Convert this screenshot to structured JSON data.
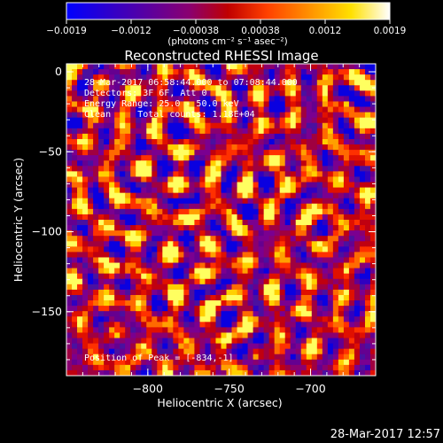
{
  "chart_data": {
    "type": "heatmap",
    "title": "Reconstructed RHESSI Image",
    "xlabel": "Heliocentric X (arcsec)",
    "ylabel": "Heliocentric Y (arcsec)",
    "xlim": [
      -850,
      -660
    ],
    "ylim": [
      -190,
      5
    ],
    "x_ticks": [
      -800,
      -750,
      -700
    ],
    "y_ticks": [
      0,
      -50,
      -100,
      -150
    ],
    "x_tick_labels": [
      "−800",
      "−750",
      "−700"
    ],
    "y_tick_labels": [
      "0",
      "−50",
      "−100",
      "−150"
    ],
    "colorbar": {
      "range": [
        -0.0019,
        0.0019
      ],
      "tick_labels": [
        "−0.0019",
        "−0.0012",
        "−0.00038",
        "0.00038",
        "0.0012",
        "0.0019"
      ],
      "unit_label": "(photons cm⁻² s⁻¹ asec⁻²)",
      "colormap": [
        "#0000ff",
        "#3b00b0",
        "#6a0090",
        "#9a0050",
        "#d00000",
        "#ff5a00",
        "#ffb000",
        "#ffff60",
        "#ffffff"
      ]
    },
    "annotations": [
      "28-Mar-2017 06:58:44.000 to 07:08:44.000",
      "Detectors: 3F 6F, Att 0",
      "Energy Range: 25.0 - 50.0 keV",
      "Clean     Total counts: 1.18E+04"
    ],
    "peak_label": "Position of Peak = [-834,-1]"
  },
  "footer": {
    "timestamp": "28-Mar-2017 12:57"
  }
}
